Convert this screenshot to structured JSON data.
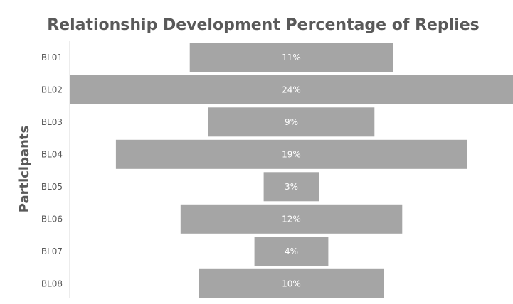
{
  "chart_data": {
    "type": "bar",
    "orientation": "horizontal",
    "layout": "centered-funnel",
    "title": "Relationship Development Percentage of Replies",
    "ylabel": "Participants",
    "xlabel": "",
    "categories": [
      "BL01",
      "BL02",
      "BL03",
      "BL04",
      "BL05",
      "BL06",
      "BL07",
      "BL08"
    ],
    "values": [
      11,
      24,
      9,
      19,
      3,
      12,
      4,
      10
    ],
    "data_labels": [
      "11%",
      "24%",
      "9%",
      "19%",
      "3%",
      "12%",
      "4%",
      "10%"
    ],
    "unit": "%",
    "bar_color": "#a5a5a5",
    "label_color": "#ffffff",
    "text_color": "#595959",
    "axis_color": "#d9d9d9",
    "grid": false,
    "legend": "none"
  }
}
